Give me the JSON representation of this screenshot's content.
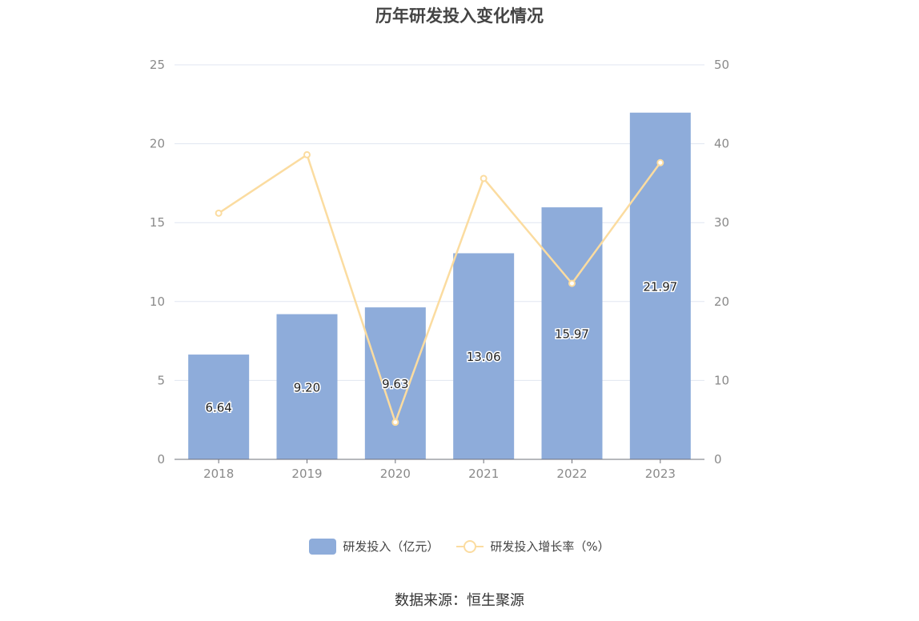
{
  "chart_data": {
    "type": "bar",
    "title": "历年研发投入变化情况",
    "categories": [
      "2018",
      "2019",
      "2020",
      "2021",
      "2022",
      "2023"
    ],
    "series": [
      {
        "name": "研发投入（亿元）",
        "type": "bar",
        "axis": "left",
        "values": [
          6.64,
          9.2,
          9.63,
          13.06,
          15.97,
          21.97
        ],
        "labels": [
          "6.64",
          "9.20",
          "9.63",
          "13.06",
          "15.97",
          "21.97"
        ],
        "color": "#8eacda"
      },
      {
        "name": "研发投入增长率（%）",
        "type": "line",
        "axis": "right",
        "values": [
          31.2,
          38.6,
          4.7,
          35.6,
          22.3,
          37.6
        ],
        "color": "#fbdca0"
      }
    ],
    "y_left": {
      "min": 0,
      "max": 25,
      "ticks": [
        "0",
        "5",
        "10",
        "15",
        "20",
        "25"
      ]
    },
    "y_right": {
      "min": 0,
      "max": 50,
      "ticks": [
        "0",
        "10",
        "20",
        "30",
        "40",
        "50"
      ]
    },
    "grid": true,
    "legend_position": "bottom"
  },
  "source_text": "数据来源：恒生聚源"
}
